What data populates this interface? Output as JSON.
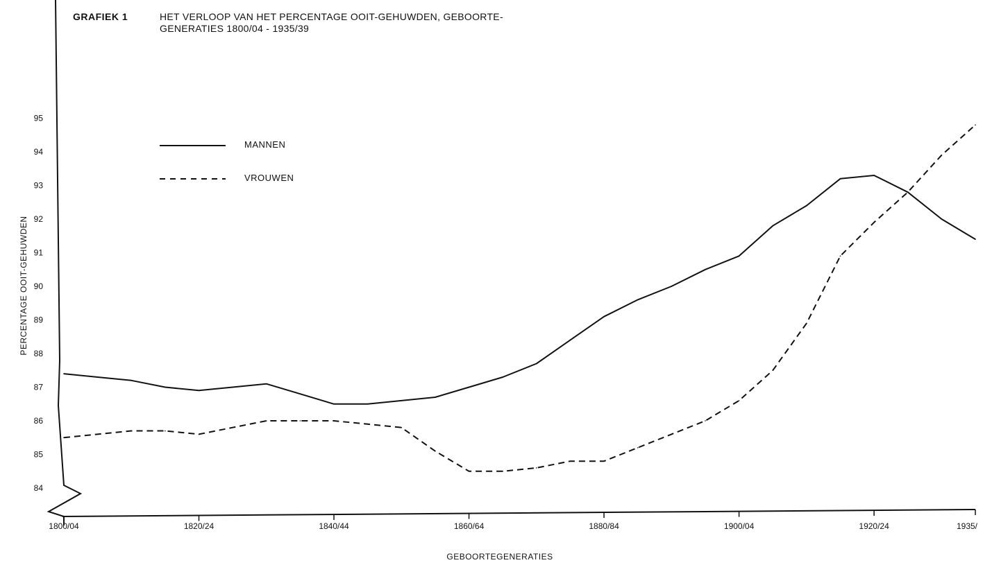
{
  "figure": {
    "label": "GRAFIEK 1",
    "title_line1": "HET VERLOOP VAN HET PERCENTAGE OOIT-GEHUWDEN, GEBOORTE-",
    "title_line2": "GENERATIES 1800/04 - 1935/39"
  },
  "chart_data": {
    "type": "line",
    "xlabel": "GEBOORTEGENERATIES",
    "ylabel": "PERCENTAGE OOIT-GEHUWDEN",
    "xlim": [
      1800,
      1935
    ],
    "ylim": [
      83,
      95
    ],
    "x_ticks": [
      1800,
      1820,
      1840,
      1860,
      1880,
      1900,
      1920,
      1935
    ],
    "x_tick_labels": [
      "1800/04",
      "1820/24",
      "1840/44",
      "1860/64",
      "1880/84",
      "1900/04",
      "1920/24",
      "1935/"
    ],
    "y_ticks": [
      84,
      85,
      86,
      87,
      88,
      89,
      90,
      91,
      92,
      93,
      94,
      95
    ],
    "grid": false,
    "legend_position": "top-left",
    "series": [
      {
        "name": "MANNEN",
        "style": "solid",
        "color": "#111111",
        "x": [
          1800,
          1805,
          1810,
          1815,
          1820,
          1825,
          1830,
          1835,
          1840,
          1845,
          1850,
          1855,
          1860,
          1865,
          1870,
          1875,
          1880,
          1885,
          1890,
          1895,
          1900,
          1905,
          1910,
          1915,
          1920,
          1925,
          1930,
          1935
        ],
        "values": [
          87.4,
          87.3,
          87.2,
          87.0,
          86.9,
          87.0,
          87.1,
          86.8,
          86.5,
          86.5,
          86.6,
          86.7,
          87.0,
          87.3,
          87.7,
          88.4,
          89.1,
          89.6,
          90.0,
          90.5,
          90.9,
          91.8,
          92.4,
          93.2,
          93.3,
          92.8,
          92.0,
          91.4
        ]
      },
      {
        "name": "VROUWEN",
        "style": "dashed",
        "color": "#111111",
        "x": [
          1800,
          1805,
          1810,
          1815,
          1820,
          1825,
          1830,
          1835,
          1840,
          1845,
          1850,
          1855,
          1860,
          1865,
          1870,
          1875,
          1880,
          1885,
          1890,
          1895,
          1900,
          1905,
          1910,
          1915,
          1920,
          1925,
          1930,
          1935
        ],
        "values": [
          85.5,
          85.6,
          85.7,
          85.7,
          85.6,
          85.8,
          86.0,
          86.0,
          86.0,
          85.9,
          85.8,
          85.1,
          84.5,
          84.5,
          84.6,
          84.8,
          84.8,
          85.2,
          85.6,
          86.0,
          86.6,
          87.5,
          88.9,
          90.9,
          91.9,
          92.8,
          93.9,
          94.8
        ]
      }
    ]
  }
}
